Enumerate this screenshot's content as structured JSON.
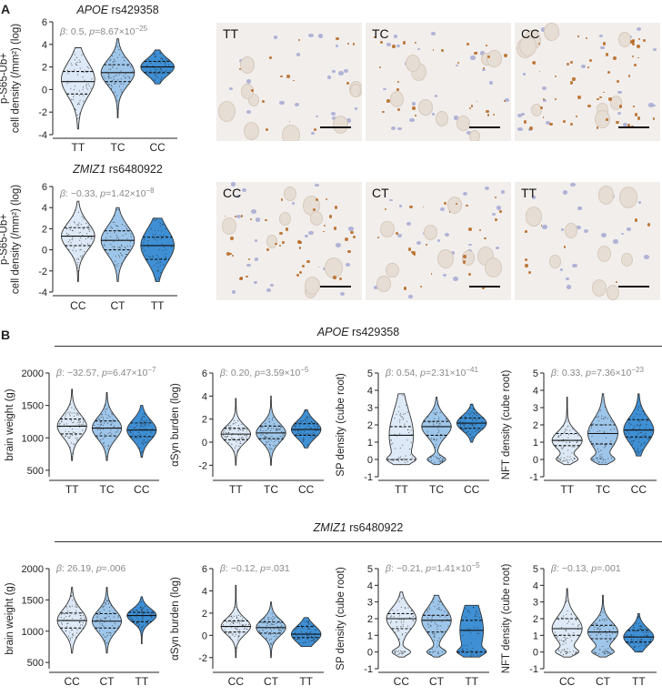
{
  "panel_labels": {
    "a": "A",
    "b": "B"
  },
  "section_b": {
    "apoe_heading": {
      "gene": "APOE",
      "snp": "rs429358"
    },
    "zmiz1_heading": {
      "gene": "ZMIZ1",
      "snp": "rs6480922"
    }
  },
  "panel_a": {
    "micrograph_rows": [
      {
        "tiles": [
          "TT",
          "TC",
          "CC"
        ]
      },
      {
        "tiles": [
          "CC",
          "CT",
          "TT"
        ]
      }
    ]
  },
  "chart_data": [
    {
      "id": "a1",
      "type": "violin",
      "title": {
        "gene": "APOE",
        "snp": "rs429358"
      },
      "stat": {
        "beta": "0.5",
        "p_text": "8.67×10",
        "p_exp": "−25"
      },
      "ylabel": [
        "p-S65-Ub+",
        "cell density (/mm²) (log)"
      ],
      "ylim": [
        -4,
        6
      ],
      "yticks": [
        "-4",
        "-2",
        "0",
        "2",
        "4",
        "6"
      ],
      "ytick_values": [
        -4,
        -2,
        0,
        2,
        4,
        6
      ],
      "categories": [
        "TT",
        "TC",
        "CC"
      ],
      "medians": [
        0.7,
        1.5,
        2.0
      ],
      "q1": [
        -0.4,
        0.7,
        1.5
      ],
      "q3": [
        1.6,
        2.2,
        2.5
      ],
      "mins": [
        -3.5,
        -2.5,
        0.5
      ],
      "maxs": [
        3.7,
        4.5,
        3.5
      ],
      "mode_shift": [
        0.2,
        0.0,
        0.0
      ]
    },
    {
      "id": "a2",
      "type": "violin",
      "title": {
        "gene": "ZMIZ1",
        "snp": "rs6480922"
      },
      "stat": {
        "beta": "−0.33",
        "p_text": "1.42×10",
        "p_exp": "−8"
      },
      "ylabel": [
        "p-S65-Ub+",
        "cell density (/mm²) (log)"
      ],
      "ylim": [
        -4,
        6
      ],
      "yticks": [
        "-4",
        "-2",
        "0",
        "2",
        "4",
        "6"
      ],
      "ytick_values": [
        -4,
        -2,
        0,
        2,
        4,
        6
      ],
      "categories": [
        "CC",
        "CT",
        "TT"
      ],
      "medians": [
        1.3,
        0.9,
        0.4
      ],
      "q1": [
        0.4,
        0.0,
        -0.9
      ],
      "q3": [
        2.1,
        1.8,
        1.2
      ],
      "mins": [
        -3.0,
        -3.0,
        -3.0
      ],
      "maxs": [
        4.6,
        4.0,
        3.0
      ],
      "mode_shift": [
        0.0,
        0.0,
        0.0
      ]
    },
    {
      "id": "b1",
      "type": "violin",
      "stat": {
        "beta": "−32.57",
        "p_text": "6.47×10",
        "p_exp": "−7"
      },
      "ylabel": [
        "brain weight (g)"
      ],
      "ylim": [
        400,
        2000
      ],
      "yticks": [
        "500",
        "1000",
        "1500",
        "2000"
      ],
      "ytick_values": [
        500,
        1000,
        1500,
        2000
      ],
      "categories": [
        "TT",
        "TC",
        "CC"
      ],
      "medians": [
        1180,
        1150,
        1120
      ],
      "q1": [
        1060,
        1030,
        1020
      ],
      "q3": [
        1290,
        1260,
        1230
      ],
      "mins": [
        650,
        650,
        700
      ],
      "maxs": [
        1750,
        1700,
        1500
      ],
      "mode_shift": [
        0.0,
        0.0,
        0.0
      ]
    },
    {
      "id": "b2",
      "type": "violin",
      "stat": {
        "beta": "0.20",
        "p_text": "3.59×10",
        "p_exp": "−5"
      },
      "ylabel": [
        "αSyn burden (log)"
      ],
      "ylim": [
        -3,
        6
      ],
      "yticks": [
        "-2",
        "0",
        "2",
        "4",
        "6"
      ],
      "ytick_values": [
        -2,
        0,
        2,
        4,
        6
      ],
      "categories": [
        "TT",
        "TC",
        "CC"
      ],
      "medians": [
        0.7,
        0.8,
        1.1
      ],
      "q1": [
        0.2,
        0.3,
        0.6
      ],
      "q3": [
        1.2,
        1.4,
        1.6
      ],
      "mins": [
        -2.0,
        -2.0,
        -0.5
      ],
      "maxs": [
        3.8,
        4.0,
        2.8
      ],
      "mode_shift": [
        0.0,
        0.0,
        0.0
      ]
    },
    {
      "id": "b3",
      "type": "violin",
      "stat": {
        "beta": "0.54",
        "p_text": "2.31×10",
        "p_exp": "−41"
      },
      "ylabel": [
        "SP density (cube root)"
      ],
      "ylim": [
        -1,
        5
      ],
      "yticks": [
        "-1",
        "0",
        "1",
        "2",
        "3",
        "4",
        "5"
      ],
      "ytick_values": [
        -1,
        0,
        1,
        2,
        3,
        4,
        5
      ],
      "categories": [
        "TT",
        "TC",
        "CC"
      ],
      "medians": [
        1.4,
        1.9,
        2.1
      ],
      "q1": [
        0.0,
        1.4,
        1.8
      ],
      "q3": [
        1.9,
        2.2,
        2.4
      ],
      "mins": [
        -0.3,
        -0.3,
        1.0
      ],
      "maxs": [
        3.8,
        3.6,
        3.2
      ],
      "mode_shift": [
        0.0,
        0.0,
        0.0
      ],
      "zero_inflated": [
        true,
        true,
        false
      ]
    },
    {
      "id": "b4",
      "type": "violin",
      "stat": {
        "beta": "0.33",
        "p_text": "7.36×10",
        "p_exp": "−23"
      },
      "ylabel": [
        "NFT density (cube root)"
      ],
      "ylim": [
        -1,
        5
      ],
      "yticks": [
        "-1",
        "0",
        "1",
        "2",
        "3",
        "4",
        "5"
      ],
      "ytick_values": [
        -1,
        0,
        1,
        2,
        3,
        4,
        5
      ],
      "categories": [
        "TT",
        "TC",
        "CC"
      ],
      "medians": [
        1.1,
        1.5,
        1.7
      ],
      "q1": [
        0.8,
        0.9,
        1.3
      ],
      "q3": [
        1.5,
        2.0,
        2.3
      ],
      "mins": [
        -0.3,
        -0.3,
        0.2
      ],
      "maxs": [
        3.6,
        3.8,
        3.8
      ],
      "mode_shift": [
        0.0,
        0.0,
        0.0
      ],
      "zero_inflated": [
        true,
        true,
        false
      ]
    },
    {
      "id": "b5",
      "type": "violin",
      "stat": {
        "beta": "26.19",
        "p_text": ".006",
        "p_exp": ""
      },
      "ylabel": [
        "brain weight (g)"
      ],
      "ylim": [
        400,
        2000
      ],
      "yticks": [
        "500",
        "1000",
        "1500",
        "2000"
      ],
      "ytick_values": [
        500,
        1000,
        1500,
        2000
      ],
      "categories": [
        "CC",
        "CT",
        "TT"
      ],
      "medians": [
        1170,
        1160,
        1250
      ],
      "q1": [
        1050,
        1050,
        1150
      ],
      "q3": [
        1290,
        1280,
        1300
      ],
      "mins": [
        650,
        650,
        800
      ],
      "maxs": [
        1700,
        1700,
        1550
      ],
      "mode_shift": [
        0.0,
        0.0,
        0.0
      ]
    },
    {
      "id": "b6",
      "type": "violin",
      "stat": {
        "beta": "−0.12",
        "p_text": ".031",
        "p_exp": ""
      },
      "ylabel": [
        "αSyn burden (log)"
      ],
      "ylim": [
        -3,
        6
      ],
      "yticks": [
        "-2",
        "0",
        "2",
        "4",
        "6"
      ],
      "ytick_values": [
        -2,
        0,
        2,
        4,
        6
      ],
      "categories": [
        "CC",
        "CT",
        "TT"
      ],
      "medians": [
        0.8,
        0.7,
        0.1
      ],
      "q1": [
        0.3,
        0.2,
        -0.2
      ],
      "q3": [
        1.3,
        1.2,
        0.8
      ],
      "mins": [
        -2.0,
        -2.0,
        -1.0
      ],
      "maxs": [
        4.5,
        3.0,
        1.6
      ],
      "mode_shift": [
        0.0,
        0.0,
        0.0
      ]
    },
    {
      "id": "b7",
      "type": "violin",
      "stat": {
        "beta": "−0.21",
        "p_text": "1.41×10",
        "p_exp": "−5"
      },
      "ylabel": [
        "SP density (cube root)"
      ],
      "ylim": [
        -1,
        5
      ],
      "yticks": [
        "-1",
        "0",
        "1",
        "2",
        "3",
        "4",
        "5"
      ],
      "ytick_values": [
        -1,
        0,
        1,
        2,
        3,
        4,
        5
      ],
      "categories": [
        "CC",
        "CT",
        "TT"
      ],
      "medians": [
        2.0,
        1.9,
        1.3
      ],
      "q1": [
        1.4,
        1.2,
        0.0
      ],
      "q3": [
        2.3,
        2.2,
        1.9
      ],
      "mins": [
        -0.3,
        -0.3,
        -0.3
      ],
      "maxs": [
        3.6,
        3.4,
        2.8
      ],
      "mode_shift": [
        0.0,
        0.0,
        0.0
      ],
      "zero_inflated": [
        true,
        true,
        true
      ]
    },
    {
      "id": "b8",
      "type": "violin",
      "stat": {
        "beta": "−0.13",
        "p_text": ".001",
        "p_exp": ""
      },
      "ylabel": [
        "NFT density (cube root)"
      ],
      "ylim": [
        -1,
        5
      ],
      "yticks": [
        "-1",
        "0",
        "1",
        "2",
        "3",
        "4",
        "5"
      ],
      "ytick_values": [
        -1,
        0,
        1,
        2,
        3,
        4,
        5
      ],
      "categories": [
        "CC",
        "CT",
        "TT"
      ],
      "medians": [
        1.4,
        1.2,
        0.9
      ],
      "q1": [
        1.0,
        0.8,
        0.6
      ],
      "q3": [
        2.0,
        1.6,
        1.3
      ],
      "mins": [
        -0.3,
        -0.3,
        0.0
      ],
      "maxs": [
        3.8,
        3.4,
        2.3
      ],
      "mode_shift": [
        0.0,
        0.0,
        0.0
      ],
      "zero_inflated": [
        true,
        true,
        false
      ]
    }
  ],
  "colors": {
    "violin": [
      "#dde9f6",
      "#9ec6ea",
      "#3e8fd4"
    ],
    "outline": "#333333",
    "dots": "#222222",
    "stat_text": "#888888",
    "tissue_bg": "#f1eeec",
    "stain": "#b5651d",
    "nuclei": "#7a83c4"
  }
}
